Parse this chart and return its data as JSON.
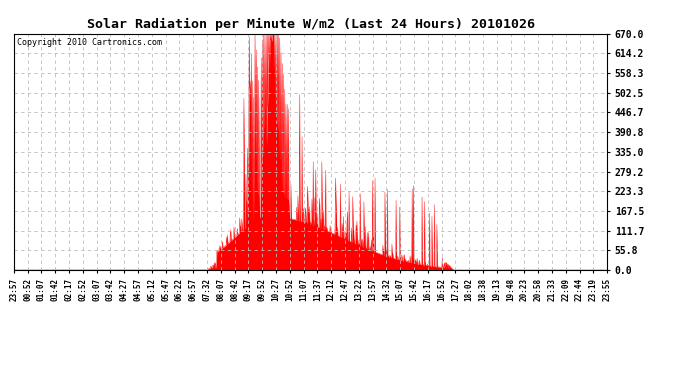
{
  "title": "Solar Radiation per Minute W/m2 (Last 24 Hours) 20101026",
  "copyright": "Copyright 2010 Cartronics.com",
  "background_color": "#ffffff",
  "plot_bg_color": "#ffffff",
  "line_color": "#ff0000",
  "y_min": 0.0,
  "y_max": 670.0,
  "y_ticks": [
    0.0,
    55.8,
    111.7,
    167.5,
    223.3,
    279.2,
    335.0,
    390.8,
    446.7,
    502.5,
    558.3,
    614.2,
    670.0
  ],
  "x_tick_labels": [
    "23:57",
    "00:52",
    "01:07",
    "01:42",
    "02:17",
    "02:52",
    "03:07",
    "03:42",
    "04:27",
    "04:57",
    "05:12",
    "05:47",
    "06:22",
    "06:57",
    "07:32",
    "08:07",
    "08:42",
    "09:17",
    "09:52",
    "10:27",
    "10:52",
    "11:07",
    "11:37",
    "12:12",
    "12:47",
    "13:22",
    "13:57",
    "14:32",
    "15:07",
    "15:42",
    "16:17",
    "16:52",
    "17:27",
    "18:02",
    "18:38",
    "19:13",
    "19:48",
    "20:23",
    "20:58",
    "21:33",
    "22:09",
    "22:44",
    "23:19",
    "23:55"
  ],
  "figsize": [
    6.9,
    3.75
  ],
  "dpi": 100
}
